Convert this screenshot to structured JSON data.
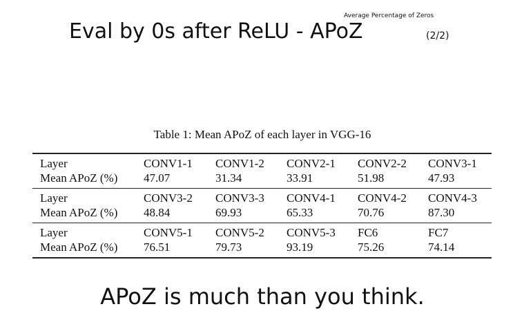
{
  "header": {
    "note": "Average Percentage of Zeros",
    "title": "Eval by 0s after ReLU - APoZ",
    "part": "(2/2)"
  },
  "table": {
    "caption": "Table 1: Mean APoZ of each layer in VGG-16",
    "groups": [
      {
        "rows": [
          [
            "Layer",
            "CONV1-1",
            "CONV1-2",
            "CONV2-1",
            "CONV2-2",
            "CONV3-1"
          ],
          [
            "Mean APoZ (%)",
            "47.07",
            "31.34",
            "33.91",
            "51.98",
            "47.93"
          ]
        ]
      },
      {
        "rows": [
          [
            "Layer",
            "CONV3-2",
            "CONV3-3",
            "CONV4-1",
            "CONV4-2",
            "CONV4-3"
          ],
          [
            "Mean APoZ (%)",
            "48.84",
            "69.93",
            "65.33",
            "70.76",
            "87.30"
          ]
        ]
      },
      {
        "rows": [
          [
            "Layer",
            "CONV5-1",
            "CONV5-2",
            "CONV5-3",
            "FC6",
            "FC7"
          ],
          [
            "Mean APoZ (%)",
            "76.51",
            "79.73",
            "93.19",
            "75.26",
            "74.14"
          ]
        ]
      }
    ]
  },
  "footer": "APoZ is much than you think."
}
